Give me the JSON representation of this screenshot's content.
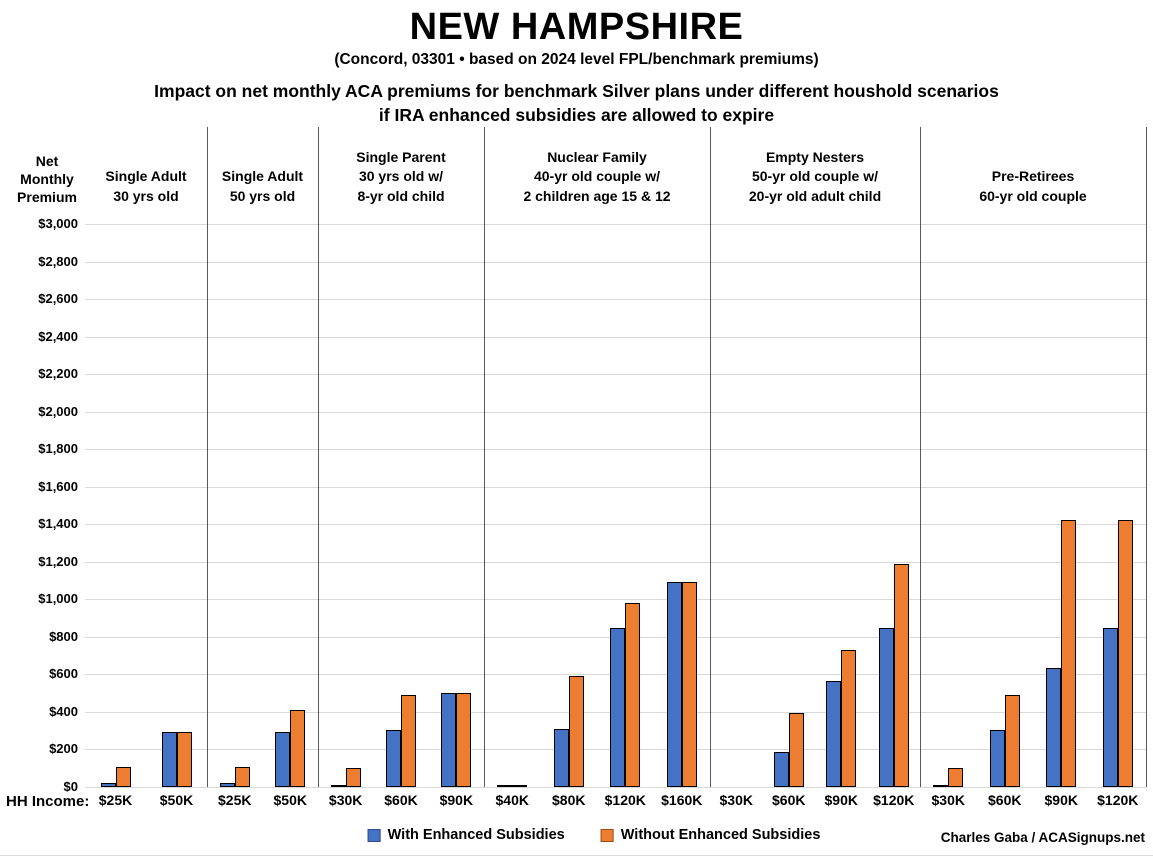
{
  "header": {
    "title": "NEW HAMPSHIRE",
    "subtitle": "(Concord, 03301 • based on 2024 level FPL/benchmark premiums)",
    "description_line1": "Impact on net monthly ACA premiums for benchmark Silver plans under different houshold scenarios",
    "description_line2": "if IRA enhanced subsidies are allowed to expire"
  },
  "y_axis": {
    "label_lines": [
      "Net",
      "Monthly",
      "Premium"
    ]
  },
  "x_axis": {
    "label": "HH Income:"
  },
  "legend": {
    "items": [
      {
        "label": "With Enhanced Subsidies",
        "color": "#4472C4",
        "border": "#2E4D8A"
      },
      {
        "label": "Without Enhanced Subsidies",
        "color": "#ED7D31",
        "border": "#9C4E12"
      }
    ]
  },
  "credit": "Charles Gaba / ACASignups.net",
  "colors": {
    "with_subsidies": "#4472C4",
    "without_subsidies": "#ED7D31",
    "bar_border": "#000000",
    "gridline": "#D9D9D9",
    "panel_divider": "#595959"
  },
  "chart_data": {
    "type": "bar",
    "title": "Impact on net monthly ACA premiums for benchmark Silver plans under different houshold scenarios if IRA enhanced subsidies are allowed to expire",
    "xlabel": "HH Income:",
    "ylabel": "Net Monthly Premium",
    "ylim": [
      0,
      3000
    ],
    "ytick_interval": 200,
    "ytick_labels_bottom_to_top": [
      "$0",
      "$200",
      "$400",
      "$600",
      "$800",
      "$1,000",
      "$1,200",
      "$1,400",
      "$1,600",
      "$1,800",
      "$2,000",
      "$2,200",
      "$2,400",
      "$2,600",
      "$2,800",
      "$3,000"
    ],
    "grid": true,
    "legend_position": "bottom",
    "series_names": [
      "With Enhanced Subsidies",
      "Without Enhanced Subsidies"
    ],
    "panels": [
      {
        "title_lines": [
          "Single Adult",
          "30 yrs old"
        ],
        "categories": [
          "$25K",
          "$50K"
        ],
        "series": [
          {
            "name": "With Enhanced Subsidies",
            "values": [
              20,
              295
            ]
          },
          {
            "name": "Without Enhanced Subsidies",
            "values": [
              105,
              295
            ]
          }
        ]
      },
      {
        "title_lines": [
          "Single Adult",
          "50 yrs old"
        ],
        "categories": [
          "$25K",
          "$50K"
        ],
        "series": [
          {
            "name": "With Enhanced Subsidies",
            "values": [
              20,
              295
            ]
          },
          {
            "name": "Without Enhanced Subsidies",
            "values": [
              105,
              410
            ]
          }
        ]
      },
      {
        "title_lines": [
          "Single Parent",
          "30 yrs old w/",
          "8-yr old child"
        ],
        "categories": [
          "$30K",
          "$60K",
          "$90K"
        ],
        "series": [
          {
            "name": "With Enhanced Subsidies",
            "values": [
              10,
              305,
              500
            ]
          },
          {
            "name": "Without Enhanced Subsidies",
            "values": [
              100,
              490,
              500
            ]
          }
        ]
      },
      {
        "title_lines": [
          "Nuclear Family",
          "40-yr old couple w/",
          "2 children age 15 & 12"
        ],
        "categories": [
          "$40K",
          "$80K",
          "$120K",
          "$160K"
        ],
        "series": [
          {
            "name": "With Enhanced Subsidies",
            "values": [
              0,
              310,
              845,
              1090
            ]
          },
          {
            "name": "Without Enhanced Subsidies",
            "values": [
              0,
              590,
              980,
              1090
            ]
          }
        ]
      },
      {
        "title_lines": [
          "Empty Nesters",
          "50-yr old couple w/",
          "20-yr old adult child"
        ],
        "categories": [
          "$30K",
          "$60K",
          "$90K",
          "$120K"
        ],
        "series": [
          {
            "name": "With Enhanced Subsidies",
            "values": [
              null,
              185,
              565,
              845
            ]
          },
          {
            "name": "Without Enhanced Subsidies",
            "values": [
              null,
              395,
              730,
              1190
            ]
          }
        ]
      },
      {
        "title_lines": [
          "Pre-Retirees",
          "60-yr old couple"
        ],
        "categories": [
          "$30K",
          "$60K",
          "$90K",
          "$120K"
        ],
        "series": [
          {
            "name": "With Enhanced Subsidies",
            "values": [
              0,
              305,
              635,
              845
            ]
          },
          {
            "name": "Without Enhanced Subsidies",
            "values": [
              100,
              490,
              1425,
              1425
            ]
          }
        ]
      }
    ]
  }
}
